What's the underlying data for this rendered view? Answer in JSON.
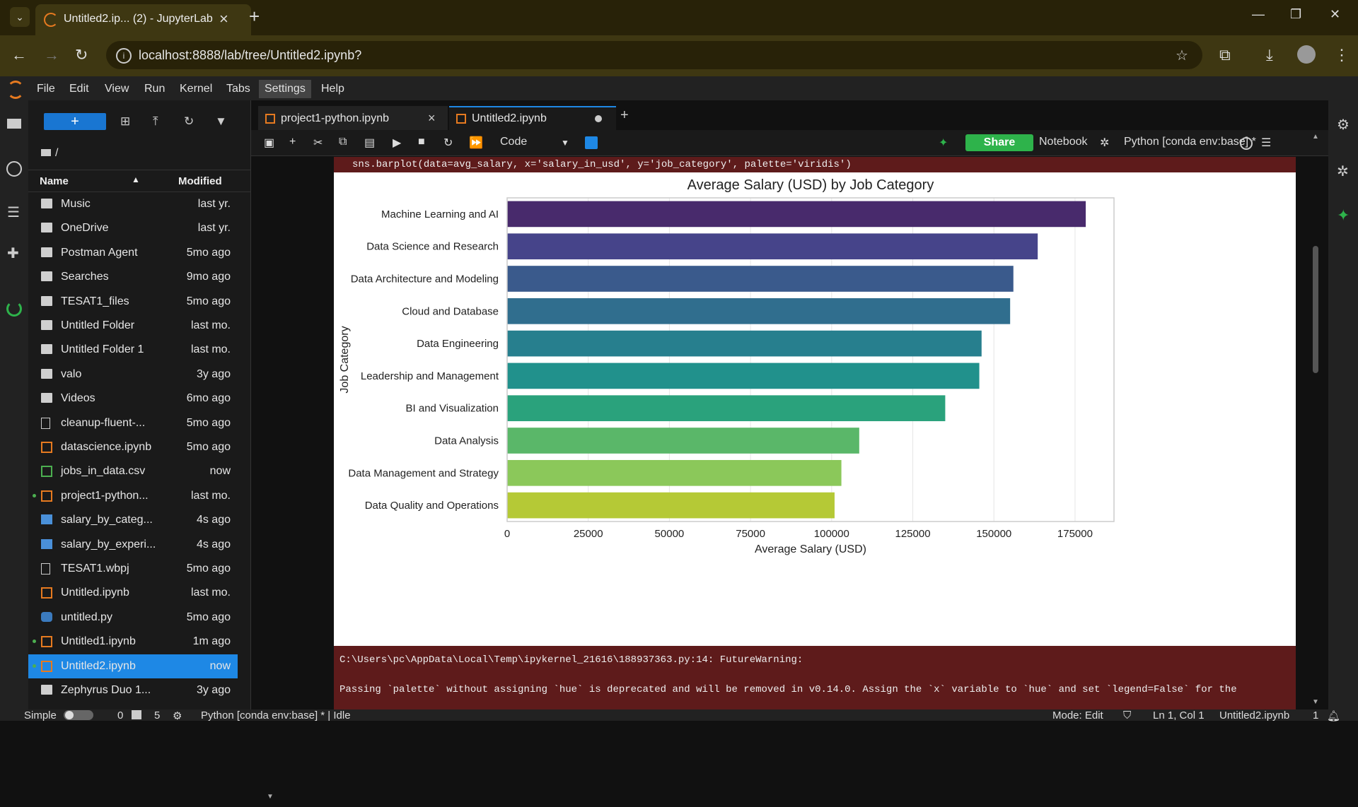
{
  "browser": {
    "tab_title": "Untitled2.ip... (2) - JupyterLab",
    "url": "localhost:8888/lab/tree/Untitled2.ipynb?"
  },
  "menu": [
    "File",
    "Edit",
    "View",
    "Run",
    "Kernel",
    "Tabs",
    "Settings",
    "Help"
  ],
  "filebrowser": {
    "breadcrumb": "/",
    "col_name": "Name",
    "col_modified": "Modified",
    "files": [
      {
        "name": "Music",
        "modified": "last yr.",
        "type": "folder"
      },
      {
        "name": "OneDrive",
        "modified": "last yr.",
        "type": "folder"
      },
      {
        "name": "Postman Agent",
        "modified": "5mo ago",
        "type": "folder"
      },
      {
        "name": "Searches",
        "modified": "9mo ago",
        "type": "folder"
      },
      {
        "name": "TESAT1_files",
        "modified": "5mo ago",
        "type": "folder"
      },
      {
        "name": "Untitled Folder",
        "modified": "last mo.",
        "type": "folder"
      },
      {
        "name": "Untitled Folder 1",
        "modified": "last mo.",
        "type": "folder"
      },
      {
        "name": "valo",
        "modified": "3y ago",
        "type": "folder"
      },
      {
        "name": "Videos",
        "modified": "6mo ago",
        "type": "folder"
      },
      {
        "name": "cleanup-fluent-...",
        "modified": "5mo ago",
        "type": "file"
      },
      {
        "name": "datascience.ipynb",
        "modified": "5mo ago",
        "type": "ipynb"
      },
      {
        "name": "jobs_in_data.csv",
        "modified": "now",
        "type": "csv"
      },
      {
        "name": "project1-python...",
        "modified": "last mo.",
        "type": "ipynb",
        "running": true
      },
      {
        "name": "salary_by_categ...",
        "modified": "4s ago",
        "type": "img"
      },
      {
        "name": "salary_by_experi...",
        "modified": "4s ago",
        "type": "img"
      },
      {
        "name": "TESAT1.wbpj",
        "modified": "5mo ago",
        "type": "file"
      },
      {
        "name": "Untitled.ipynb",
        "modified": "last mo.",
        "type": "ipynb"
      },
      {
        "name": "untitled.py",
        "modified": "5mo ago",
        "type": "py"
      },
      {
        "name": "Untitled1.ipynb",
        "modified": "1m ago",
        "type": "ipynb",
        "running": true
      },
      {
        "name": "Untitled2.ipynb",
        "modified": "now",
        "type": "ipynb",
        "running": true,
        "selected": true
      },
      {
        "name": "Zephyrus Duo 1...",
        "modified": "3y ago",
        "type": "folder"
      }
    ]
  },
  "notebook": {
    "tabs": [
      "project1-python.ipynb",
      "Untitled2.ipynb"
    ],
    "cell_type": "Code",
    "share_label": "Share",
    "notebook_label": "Notebook",
    "kernel": "Python [conda env:base] *",
    "code_line": "sns.barplot(data=avg_salary, x='salary_in_usd', y='job_category', palette='viridis')",
    "warning_line1": "C:\\Users\\pc\\AppData\\Local\\Temp\\ipykernel_21616\\188937363.py:14: FutureWarning:",
    "warning_line2": "Passing `palette` without assigning `hue` is deprecated and will be removed in v0.14.0. Assign the `x` variable to `hue` and set `legend=False` for the"
  },
  "chart_data": {
    "type": "bar",
    "orientation": "horizontal",
    "title": "Average Salary (USD) by Job Category",
    "xlabel": "Average Salary (USD)",
    "ylabel": "Job Category",
    "xlim": [
      0,
      187000
    ],
    "xticks": [
      0,
      25000,
      50000,
      75000,
      100000,
      125000,
      150000,
      175000
    ],
    "grid": true,
    "categories": [
      "Machine Learning and AI",
      "Data Science and Research",
      "Data Architecture and Modeling",
      "Cloud and Database",
      "Data Engineering",
      "Leadership and Management",
      "BI and Visualization",
      "Data Analysis",
      "Data Management and Strategy",
      "Data Quality and Operations"
    ],
    "values": [
      178300,
      163500,
      156000,
      155000,
      146200,
      145500,
      135000,
      108500,
      103000,
      100900
    ],
    "colors": [
      "#482a6c",
      "#46448a",
      "#3a5a8c",
      "#306e8e",
      "#277f8e",
      "#21918c",
      "#2aa27c",
      "#5ab769",
      "#8bc85a",
      "#b5c936"
    ]
  },
  "status": {
    "mode_toggle": "Simple",
    "counts": "0",
    "count2": "5",
    "kernel_status": "Python [conda env:base] * | Idle",
    "mode": "Mode: Edit",
    "position": "Ln 1, Col 1",
    "filename": "Untitled2.ipynb",
    "notif": "1"
  }
}
